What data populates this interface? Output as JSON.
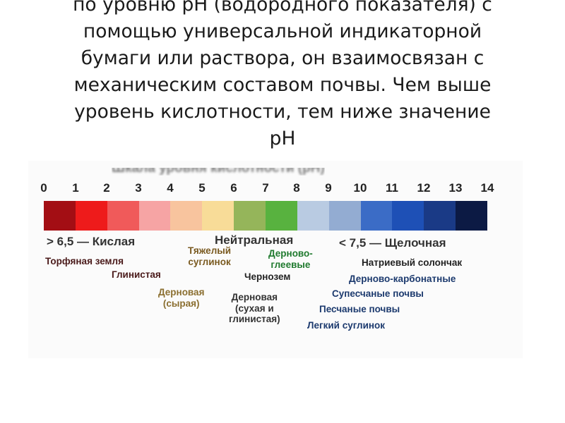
{
  "intro_text": {
    "lines": [
      "по уровню pH (водородного показателя) с",
      "помощью универсальной индикаторной",
      "бумаги или раствора, он взаимосвязан с",
      "механическим составом почвы. Чем выше",
      "уровень кислотности, тем ниже значение",
      "pH"
    ]
  },
  "figure": {
    "title": "Шкала уровня кислотности (pH)",
    "ticks": [
      "0",
      "1",
      "2",
      "3",
      "4",
      "5",
      "6",
      "7",
      "8",
      "9",
      "10",
      "11",
      "12",
      "13",
      "14"
    ],
    "colors": [
      "#a30e14",
      "#ee1b1b",
      "#f05a5a",
      "#f6a4a4",
      "#f8c49e",
      "#f8dc98",
      "#95b55a",
      "#58b23f",
      "#b9cbe2",
      "#93acd2",
      "#3b6cc6",
      "#1e50b6",
      "#1a3a86",
      "#0c1a44"
    ],
    "zones": {
      "acid": "> 6,5 — Кислая",
      "neutral": "Нейтральная",
      "alkaline": "< 7,5 — Щелочная"
    },
    "soils": {
      "peat": "Торфяная земля",
      "clay": "Глинистая",
      "heavy_loam": [
        "Тяжелый",
        "суглинок"
      ],
      "sod_gley": [
        "Дерново-",
        "глеевые"
      ],
      "chernozem": "Чернозем",
      "sod_raw": [
        "Дерновая",
        "(сырая)"
      ],
      "sod_dry": [
        "Дерновая",
        "(сухая и",
        "глинистая)"
      ],
      "sodium_solonchak": "Натриевый солончак",
      "sod_carbonate": "Дерново-карбонатные",
      "sandy_loam": "Супесчаные почвы",
      "sandy": "Песчаные почвы",
      "light_loam": "Легкий суглинок"
    }
  }
}
